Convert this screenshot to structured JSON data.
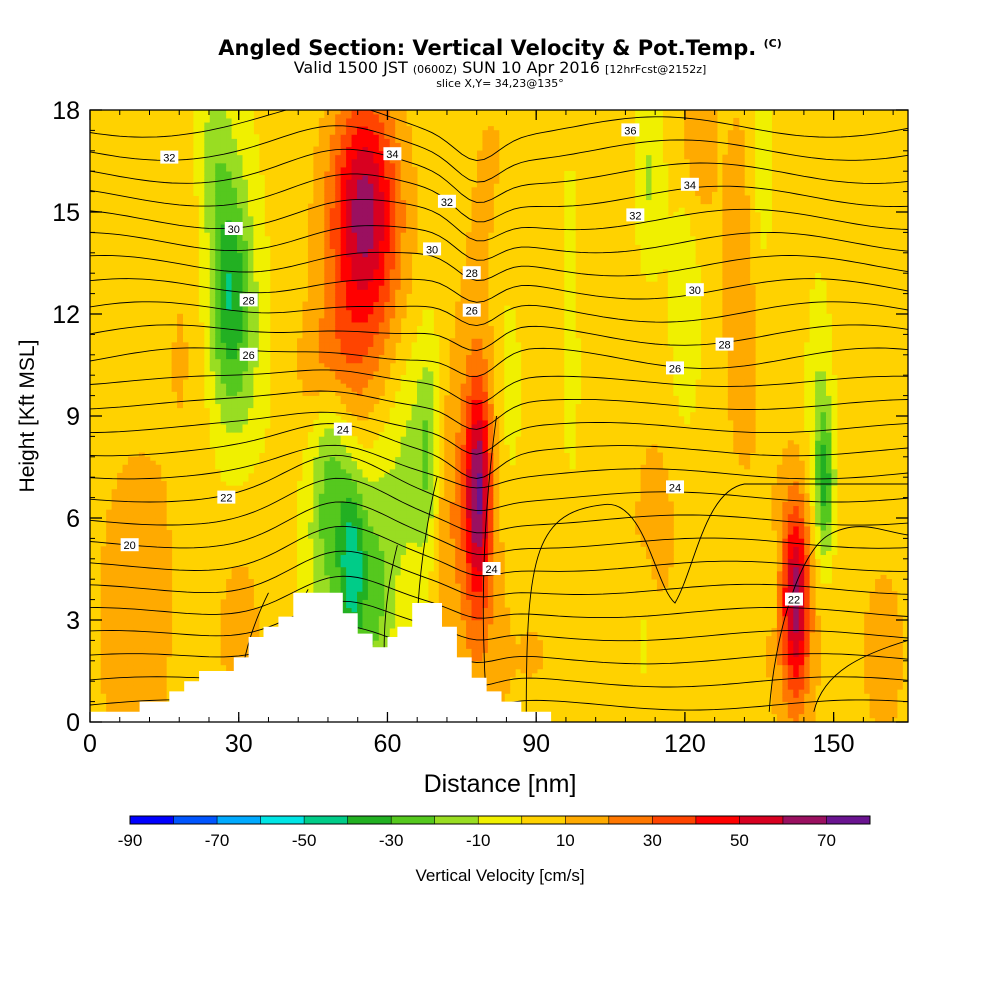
{
  "title": {
    "main": "Angled Section: Vertical Velocity & Pot.Temp.",
    "unit_tag": "(C)",
    "valid_prefix": "Valid 1500 JST",
    "utc_tag": "(0600Z)",
    "valid_date": "SUN 10 Apr 2016",
    "forecast_tag": "[12hrFcst@2152z]",
    "slice": "slice X,Y= 34,23@135°"
  },
  "chart_data": {
    "type": "heatmap",
    "xlabel": "Distance [nm]",
    "ylabel": "Height [Kft MSL]",
    "xlim": [
      0,
      165
    ],
    "ylim": [
      0,
      18
    ],
    "x_ticks": [
      0,
      30,
      60,
      90,
      120,
      150
    ],
    "y_ticks": [
      0,
      3,
      6,
      9,
      12,
      15,
      18
    ],
    "colorbar": {
      "label": "Vertical Velocity [cm/s]",
      "tick_labels": [
        "-90",
        "-70",
        "-50",
        "-30",
        "-10",
        "10",
        "30",
        "50",
        "70"
      ],
      "tick_values": [
        -90,
        -70,
        -50,
        -30,
        -10,
        10,
        30,
        50,
        70
      ],
      "range": [
        -90,
        80
      ],
      "step": 10,
      "colors": [
        "#0000ff",
        "#0055ff",
        "#00aaff",
        "#00e5e5",
        "#00cc88",
        "#22b022",
        "#55c81e",
        "#99dd22",
        "#f0f000",
        "#ffd200",
        "#ffaa00",
        "#ff7700",
        "#ff4400",
        "#ff0000",
        "#d80020",
        "#9a1060",
        "#6a1490"
      ]
    },
    "contour_field": "Potential temperature (C)",
    "contour_labels": [
      {
        "text": "20",
        "x": 8,
        "y": 5.2
      },
      {
        "text": "22",
        "x": 27.5,
        "y": 6.6
      },
      {
        "text": "22",
        "x": 142,
        "y": 3.6
      },
      {
        "text": "24",
        "x": 51,
        "y": 8.6
      },
      {
        "text": "24",
        "x": 81,
        "y": 4.5
      },
      {
        "text": "24",
        "x": 118,
        "y": 6.9
      },
      {
        "text": "26",
        "x": 32,
        "y": 10.8
      },
      {
        "text": "26",
        "x": 77,
        "y": 12.1
      },
      {
        "text": "26",
        "x": 118,
        "y": 10.4
      },
      {
        "text": "28",
        "x": 32,
        "y": 12.4
      },
      {
        "text": "28",
        "x": 77,
        "y": 13.2
      },
      {
        "text": "28",
        "x": 128,
        "y": 11.1
      },
      {
        "text": "30",
        "x": 29,
        "y": 14.5
      },
      {
        "text": "30",
        "x": 69,
        "y": 13.9
      },
      {
        "text": "30",
        "x": 122,
        "y": 12.7
      },
      {
        "text": "32",
        "x": 16,
        "y": 16.6
      },
      {
        "text": "32",
        "x": 72,
        "y": 15.3
      },
      {
        "text": "32",
        "x": 110,
        "y": 14.9
      },
      {
        "text": "34",
        "x": 61,
        "y": 16.7
      },
      {
        "text": "34",
        "x": 121,
        "y": 15.8
      },
      {
        "text": "36",
        "x": 109,
        "y": 17.4
      }
    ],
    "terrain": [
      [
        0,
        0.3
      ],
      [
        10,
        0.3
      ],
      [
        10,
        0.6
      ],
      [
        16,
        0.6
      ],
      [
        16,
        0.9
      ],
      [
        19,
        0.9
      ],
      [
        19,
        1.2
      ],
      [
        22,
        1.2
      ],
      [
        22,
        1.5
      ],
      [
        29,
        1.5
      ],
      [
        29,
        1.9
      ],
      [
        32,
        1.9
      ],
      [
        32,
        2.5
      ],
      [
        35,
        2.5
      ],
      [
        35,
        2.8
      ],
      [
        38,
        2.8
      ],
      [
        38,
        3.1
      ],
      [
        41,
        3.1
      ],
      [
        41,
        3.8
      ],
      [
        51,
        3.8
      ],
      [
        51,
        3.2
      ],
      [
        54,
        3.2
      ],
      [
        54,
        2.6
      ],
      [
        57,
        2.6
      ],
      [
        57,
        2.2
      ],
      [
        60,
        2.2
      ],
      [
        60,
        2.5
      ],
      [
        62,
        2.5
      ],
      [
        62,
        2.8
      ],
      [
        65,
        2.8
      ],
      [
        65,
        3.5
      ],
      [
        71,
        3.5
      ],
      [
        71,
        2.8
      ],
      [
        74,
        2.8
      ],
      [
        74,
        1.9
      ],
      [
        77,
        1.9
      ],
      [
        77,
        1.3
      ],
      [
        80,
        1.3
      ],
      [
        80,
        0.9
      ],
      [
        83,
        0.9
      ],
      [
        83,
        0.6
      ],
      [
        87,
        0.6
      ],
      [
        87,
        0.3
      ],
      [
        93,
        0.3
      ],
      [
        93,
        0
      ],
      [
        0,
        0
      ]
    ]
  }
}
